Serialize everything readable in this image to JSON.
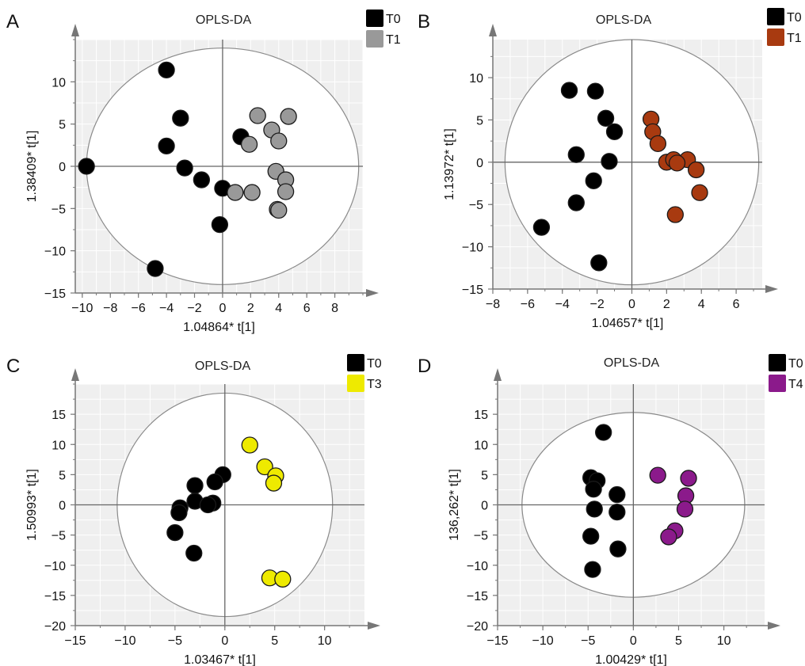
{
  "chart_data": [
    {
      "type": "scatter",
      "panel_label": "A",
      "title": "OPLS-DA",
      "xlabel": "1.04864* t[1]",
      "ylabel": "1.38409* t[1]",
      "xlim": [
        -10.5,
        10
      ],
      "ylim": [
        -15,
        15
      ],
      "xticks": [
        -10,
        -8,
        -6,
        -4,
        -2,
        0,
        2,
        4,
        6,
        8
      ],
      "xtick_labels": [
        "−10",
        "−8",
        "−6",
        "−4",
        "−2",
        "0",
        "2",
        "4",
        "6",
        "8"
      ],
      "yticks": [
        -15,
        -10,
        -5,
        0,
        5,
        10
      ],
      "ytick_labels": [
        "−15",
        "−10",
        "−5",
        "0",
        "5",
        "10"
      ],
      "ellipse": {
        "cx": 0,
        "cy": 0,
        "rx": 9.7,
        "ry": 14.0
      },
      "grid": true,
      "legend_position": "top-right",
      "series": [
        {
          "name": "T0",
          "color": "#000000",
          "points": [
            [
              -9.7,
              0
            ],
            [
              -4,
              11.4
            ],
            [
              -3,
              5.7
            ],
            [
              -4,
              2.4
            ],
            [
              -2.7,
              -0.2
            ],
            [
              -1.5,
              -1.6
            ],
            [
              0,
              -2.6
            ],
            [
              -0.2,
              -6.9
            ],
            [
              -4.8,
              -12.1
            ],
            [
              1.3,
              3.5
            ]
          ]
        },
        {
          "name": "T1",
          "color": "#999999",
          "points": [
            [
              2.5,
              6
            ],
            [
              4.7,
              5.9
            ],
            [
              3.5,
              4.3
            ],
            [
              4,
              3
            ],
            [
              1.9,
              2.6
            ],
            [
              3.8,
              -0.6
            ],
            [
              4.5,
              -1.6
            ],
            [
              4.5,
              -3
            ],
            [
              0.9,
              -3.1
            ],
            [
              2.1,
              -3.1
            ],
            [
              3.9,
              -5.1
            ],
            [
              4,
              -5.2
            ]
          ]
        }
      ]
    },
    {
      "type": "scatter",
      "panel_label": "B",
      "title": "OPLS-DA",
      "xlabel": "1.04657* t[1]",
      "ylabel": "1.13972* t[1]",
      "xlim": [
        -8,
        7.5
      ],
      "ylim": [
        -15,
        14.5
      ],
      "xticks": [
        -8,
        -6,
        -4,
        -2,
        0,
        2,
        4,
        6
      ],
      "xtick_labels": [
        "−8",
        "−6",
        "−4",
        "−2",
        "0",
        "2",
        "4",
        "6"
      ],
      "yticks": [
        -15,
        -10,
        -5,
        0,
        5,
        10
      ],
      "ytick_labels": [
        "−15",
        "−10",
        "−5",
        "0",
        "5",
        "10"
      ],
      "ellipse": {
        "cx": 0,
        "cy": 0,
        "rx": 7.3,
        "ry": 14.5
      },
      "grid": true,
      "legend_position": "top-right",
      "series": [
        {
          "name": "T0",
          "color": "#000000",
          "points": [
            [
              -3.6,
              8.5
            ],
            [
              -2.1,
              8.4
            ],
            [
              -1.5,
              5.2
            ],
            [
              -1,
              3.6
            ],
            [
              -3.2,
              0.9
            ],
            [
              -1.3,
              0.1
            ],
            [
              -2.2,
              -2.2
            ],
            [
              -3.2,
              -4.8
            ],
            [
              -5.2,
              -7.7
            ],
            [
              -1.9,
              -11.9
            ]
          ]
        },
        {
          "name": "T1",
          "color": "#a83a10",
          "points": [
            [
              1.1,
              5.1
            ],
            [
              1.2,
              3.6
            ],
            [
              1.5,
              2.2
            ],
            [
              2,
              0
            ],
            [
              2.4,
              0.3
            ],
            [
              3.2,
              0.3
            ],
            [
              3.7,
              -0.9
            ],
            [
              2.6,
              -0.1
            ],
            [
              3.9,
              -3.6
            ],
            [
              2.5,
              -6.2
            ]
          ]
        }
      ]
    },
    {
      "type": "scatter",
      "panel_label": "C",
      "title": "OPLS-DA",
      "xlabel": "1.03467* t[1]",
      "ylabel": "1.50993* t[1]",
      "xlim": [
        -15,
        14
      ],
      "ylim": [
        -20,
        20
      ],
      "xticks": [
        -15,
        -10,
        -5,
        0,
        5,
        10
      ],
      "xtick_labels": [
        "−15",
        "−10",
        "−5",
        "0",
        "5",
        "10"
      ],
      "yticks": [
        -20,
        -15,
        -10,
        -5,
        0,
        5,
        10,
        15
      ],
      "ytick_labels": [
        "−20",
        "−15",
        "−10",
        "−5",
        "0",
        "5",
        "10",
        "15"
      ],
      "ellipse": {
        "cx": 0,
        "cy": 0,
        "rx": 10.8,
        "ry": 18.5
      },
      "grid": true,
      "legend_position": "top-right",
      "series": [
        {
          "name": "T0",
          "color": "#000000",
          "points": [
            [
              -0.2,
              5
            ],
            [
              -1,
              3.8
            ],
            [
              -3,
              3.2
            ],
            [
              -4.5,
              -0.5
            ],
            [
              -4.6,
              -1.3
            ],
            [
              -3,
              0.6
            ],
            [
              -1.2,
              0.3
            ],
            [
              -1.7,
              0
            ],
            [
              -5,
              -4.6
            ],
            [
              -3.1,
              -8
            ]
          ]
        },
        {
          "name": "T3",
          "color": "#eeea00",
          "points": [
            [
              2.5,
              9.9
            ],
            [
              4,
              6.3
            ],
            [
              5.1,
              4.8
            ],
            [
              4.9,
              3.6
            ],
            [
              4.5,
              -12.1
            ],
            [
              5.8,
              -12.3
            ]
          ]
        }
      ]
    },
    {
      "type": "scatter",
      "panel_label": "D",
      "title": "OPLS-DA",
      "xlabel": "1.00429* t[1]",
      "ylabel": "136,262* t[1]",
      "xlim": [
        -15,
        14.5
      ],
      "ylim": [
        -20,
        20
      ],
      "xticks": [
        -15,
        -10,
        -5,
        0,
        5,
        10
      ],
      "xtick_labels": [
        "−15",
        "−10",
        "−5",
        "0",
        "5",
        "10"
      ],
      "yticks": [
        -20,
        -15,
        -10,
        -5,
        0,
        5,
        10,
        15
      ],
      "ytick_labels": [
        "−20",
        "−15",
        "−10",
        "−5",
        "0",
        "5",
        "10",
        "15"
      ],
      "ellipse": {
        "cx": 0,
        "cy": 0,
        "rx": 12.3,
        "ry": 15.3
      },
      "grid": true,
      "legend_position": "top-right",
      "series": [
        {
          "name": "T0",
          "color": "#000000",
          "points": [
            [
              -3.3,
              12
            ],
            [
              -4.7,
              4.5
            ],
            [
              -4,
              4
            ],
            [
              -4.4,
              2.6
            ],
            [
              -1.8,
              1.7
            ],
            [
              -4.3,
              -0.7
            ],
            [
              -1.8,
              -1.2
            ],
            [
              -4.7,
              -5.2
            ],
            [
              -1.7,
              -7.3
            ],
            [
              -4.5,
              -10.7
            ]
          ]
        },
        {
          "name": "T4",
          "color": "#8b1a8b",
          "points": [
            [
              2.7,
              4.9
            ],
            [
              6.1,
              4.4
            ],
            [
              5.8,
              1.5
            ],
            [
              5.7,
              -0.7
            ],
            [
              4.6,
              -4.3
            ],
            [
              3.9,
              -5.3
            ]
          ]
        }
      ]
    }
  ]
}
